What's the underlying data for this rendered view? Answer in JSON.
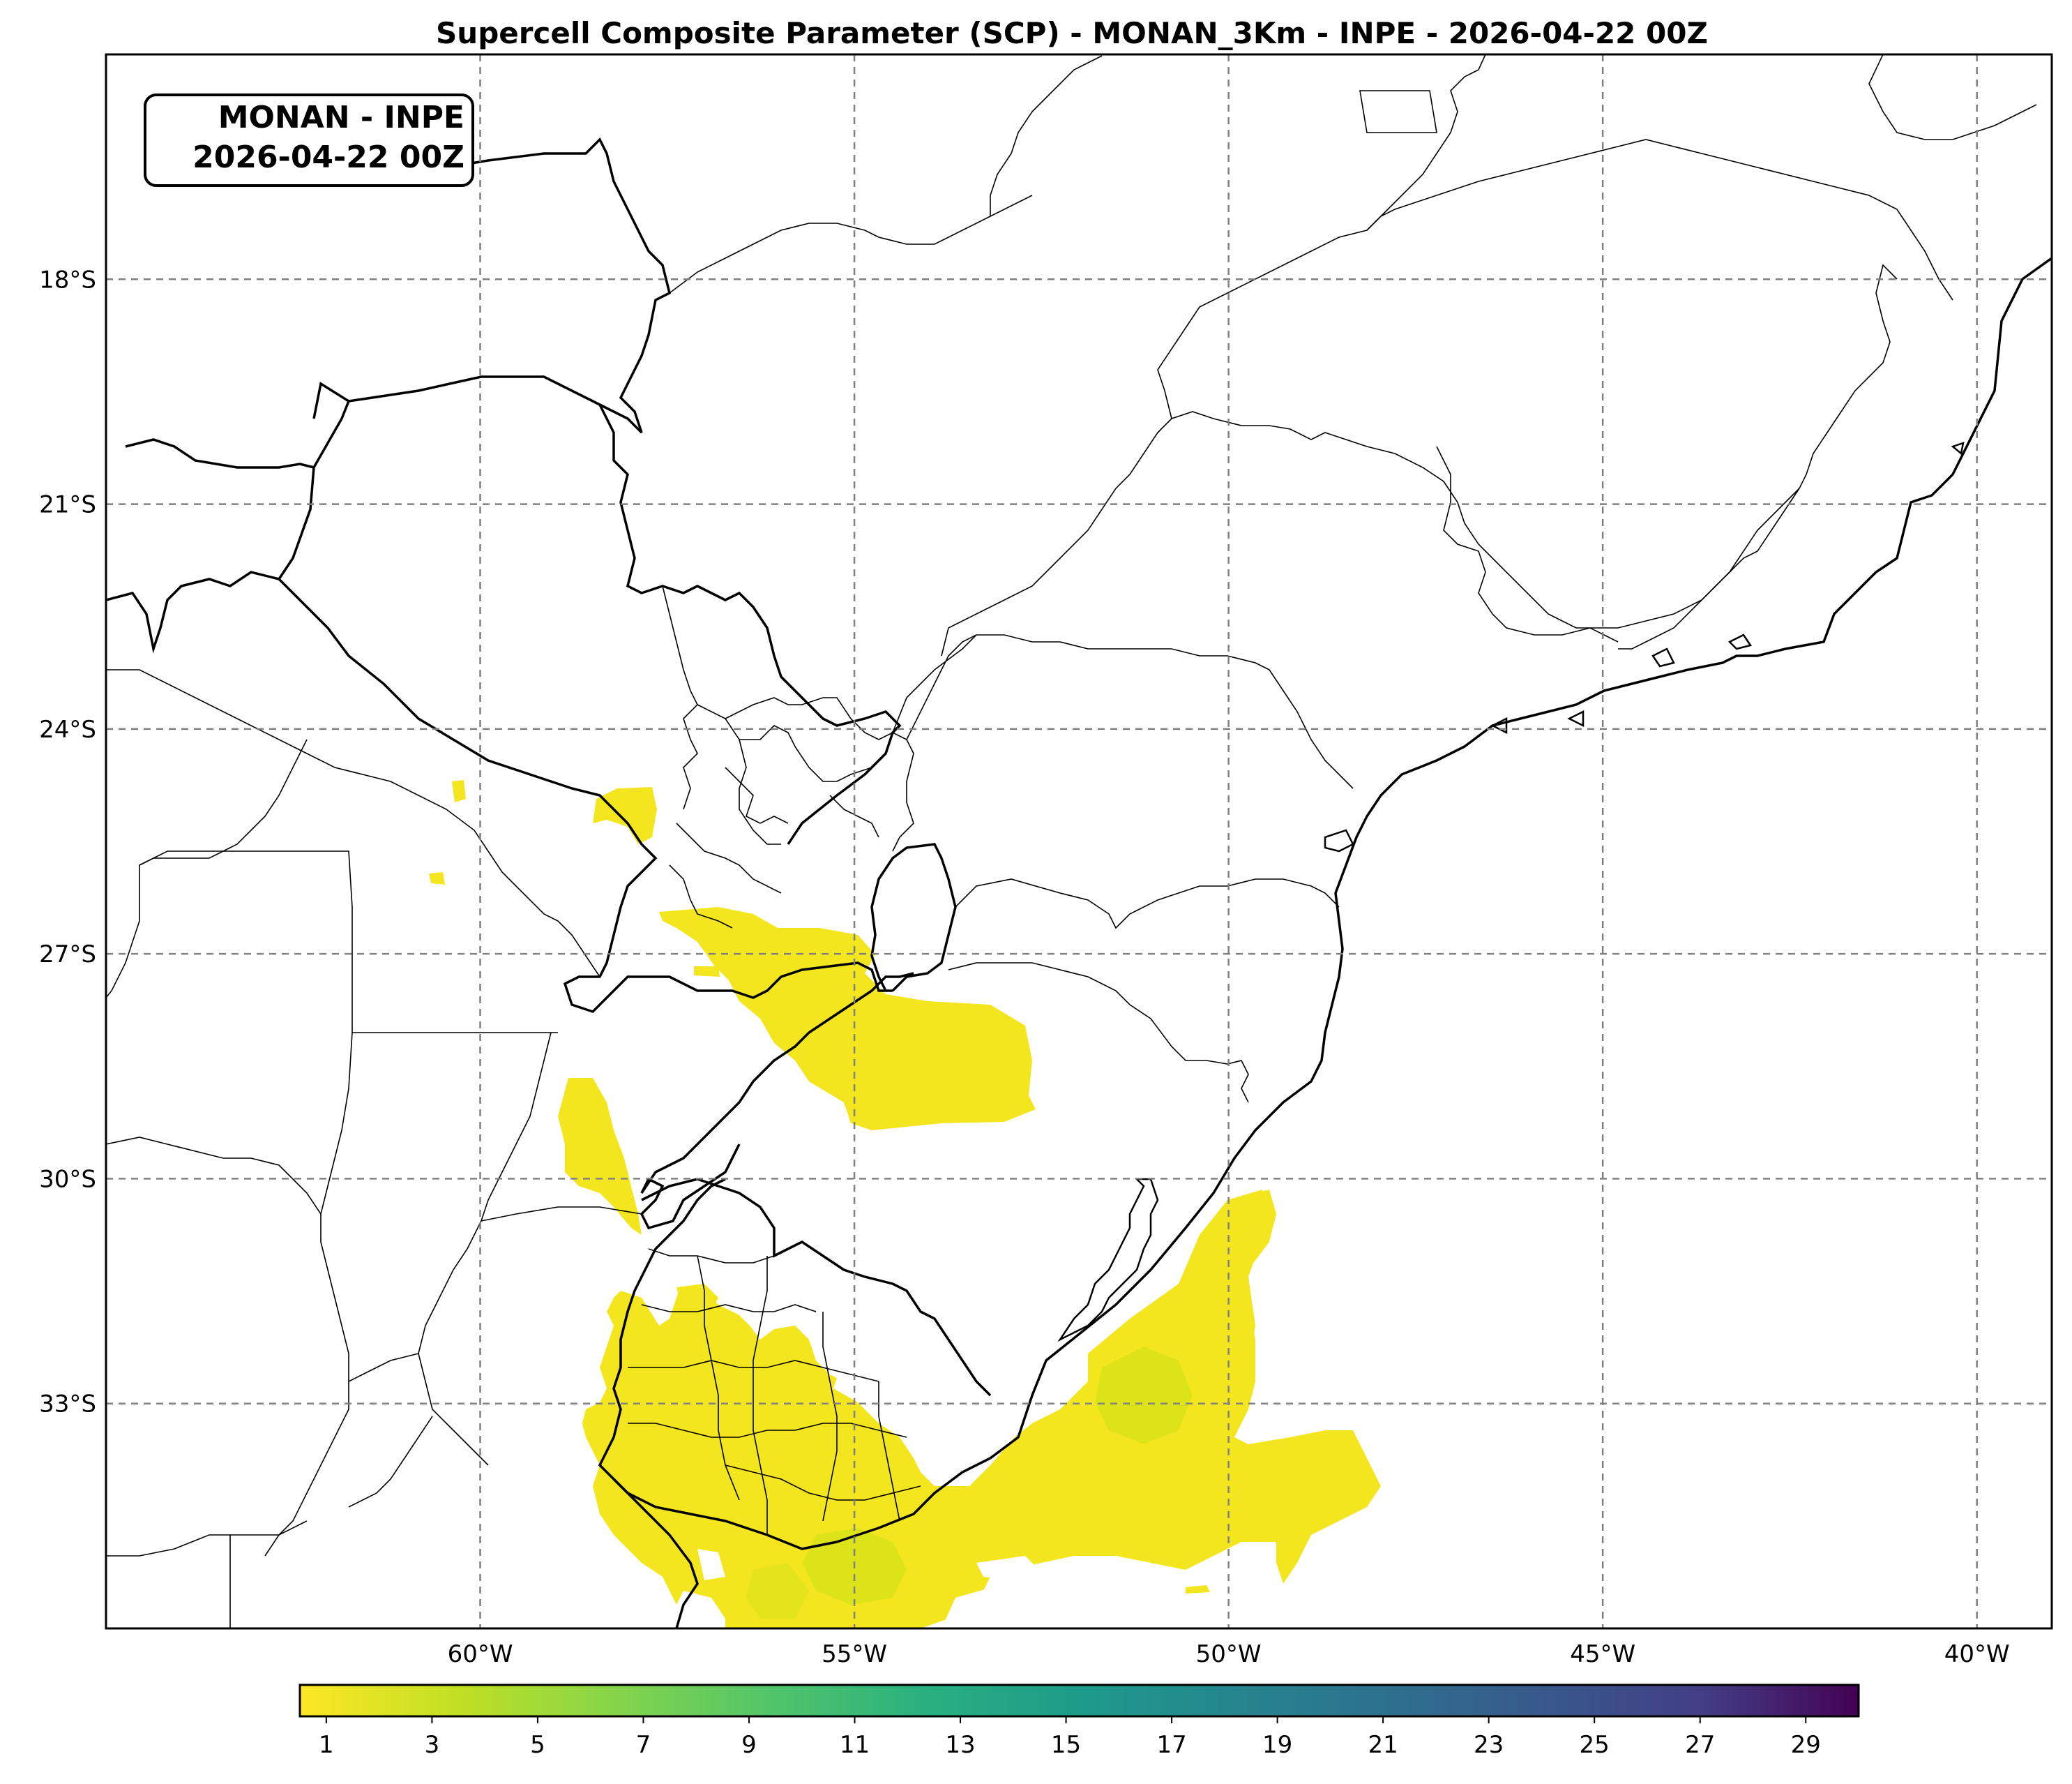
{
  "title": "Supercell Composite Parameter (SCP) - MONAN_3Km - INPE - 2026-04-22 00Z",
  "badge": {
    "line1": "MONAN - INPE",
    "line2": "2026-04-22 00Z"
  },
  "map": {
    "lon_range": [
      -65,
      -39
    ],
    "lat_range": [
      -36,
      -15
    ],
    "lat_ticks": [
      {
        "value": -18,
        "label": "18°S"
      },
      {
        "value": -21,
        "label": "21°S"
      },
      {
        "value": -24,
        "label": "24°S"
      },
      {
        "value": -27,
        "label": "27°S"
      },
      {
        "value": -30,
        "label": "30°S"
      },
      {
        "value": -33,
        "label": "33°S"
      }
    ],
    "lon_ticks": [
      {
        "value": -60,
        "label": "60°W"
      },
      {
        "value": -55,
        "label": "55°W"
      },
      {
        "value": -50,
        "label": "50°W"
      },
      {
        "value": -45,
        "label": "45°W"
      },
      {
        "value": -40,
        "label": "40°W"
      }
    ],
    "colors": {
      "gridline": "#808080",
      "border": "#000000",
      "scp_low": "#f4e61e",
      "scp_mid": "#d8e219"
    }
  },
  "colorbar": {
    "labels": [
      "1",
      "3",
      "5",
      "7",
      "9",
      "11",
      "13",
      "15",
      "17",
      "19",
      "21",
      "23",
      "25",
      "27",
      "29"
    ],
    "range": [
      0.5,
      30
    ],
    "colormap": "viridis_r"
  }
}
